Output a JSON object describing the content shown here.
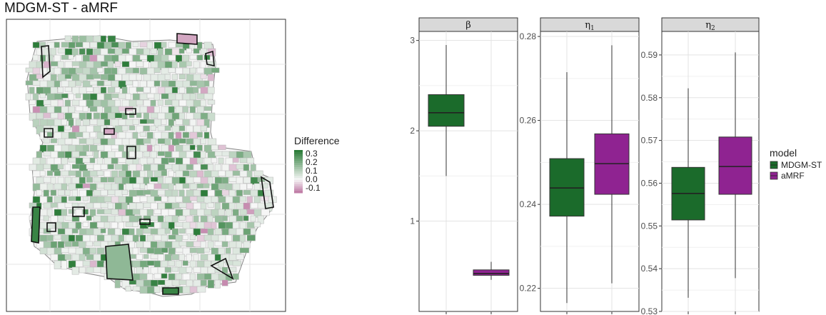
{
  "map": {
    "title": "MDGM-ST - aMRF",
    "legend_title": "Difference",
    "legend_labels": [
      "0.3",
      "0.2",
      "0.1",
      "0.0",
      "-0.1"
    ],
    "colors": {
      "positive": "#2d7d3a",
      "negative": "#c17fa8",
      "zero": "#f4f4f4"
    }
  },
  "chart_data": {
    "type": "box",
    "legend_title": "model",
    "series": [
      {
        "name": "MDGM-ST",
        "color": "#1b6b2b"
      },
      {
        "name": "aMRF",
        "color": "#8f2391"
      }
    ],
    "panels": [
      {
        "strip": "β",
        "ylim": [
          0.0,
          3.1
        ],
        "yticks": [
          "1",
          "2",
          "3"
        ],
        "ytick_values": [
          1,
          2,
          3
        ],
        "boxes": [
          {
            "model": "MDGM-ST",
            "whisker_low": 1.5,
            "q1": 2.05,
            "median": 2.2,
            "q3": 2.4,
            "whisker_high": 2.95
          },
          {
            "model": "aMRF",
            "whisker_low": 0.35,
            "q1": 0.4,
            "median": 0.42,
            "q3": 0.46,
            "whisker_high": 0.55
          }
        ]
      },
      {
        "strip": "η",
        "strip_sub": "1",
        "ylim": [
          0.2145,
          0.2812
        ],
        "yticks": [
          "0.22",
          "0.24",
          "0.26",
          "0.28"
        ],
        "ytick_values": [
          0.22,
          0.24,
          0.26,
          0.28
        ],
        "boxes": [
          {
            "model": "MDGM-ST",
            "whisker_low": 0.2165,
            "q1": 0.2372,
            "median": 0.2439,
            "q3": 0.2509,
            "whisker_high": 0.2715
          },
          {
            "model": "aMRF",
            "whisker_low": 0.2212,
            "q1": 0.2424,
            "median": 0.2497,
            "q3": 0.2568,
            "whisker_high": 0.2779
          }
        ]
      },
      {
        "strip": "η",
        "strip_sub": "2",
        "ylim": [
          0.53,
          0.5955
        ],
        "yticks": [
          "0.53",
          "0.54",
          "0.55",
          "0.56",
          "0.57",
          "0.58",
          "0.59"
        ],
        "ytick_values": [
          0.53,
          0.54,
          0.55,
          0.56,
          0.57,
          0.58,
          0.59
        ],
        "boxes": [
          {
            "model": "MDGM-ST",
            "whisker_low": 0.5332,
            "q1": 0.5514,
            "median": 0.5576,
            "q3": 0.5637,
            "whisker_high": 0.5822
          },
          {
            "model": "aMRF",
            "whisker_low": 0.5378,
            "q1": 0.5574,
            "median": 0.5639,
            "q3": 0.5708,
            "whisker_high": 0.5906
          }
        ]
      }
    ]
  }
}
